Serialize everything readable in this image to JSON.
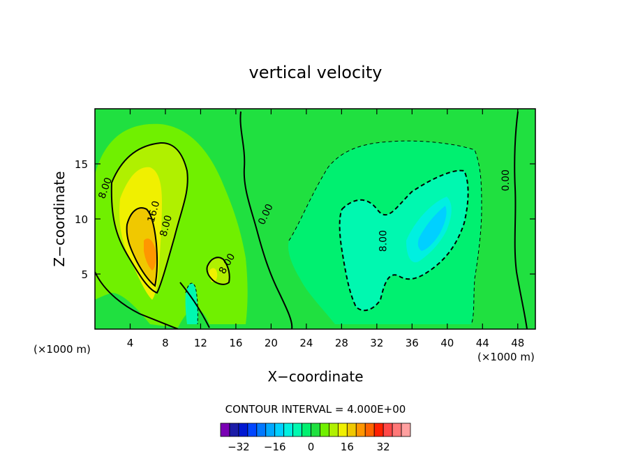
{
  "chart_data": {
    "type": "heatmap",
    "subtype": "filled-contour",
    "title": "vertical velocity",
    "xlabel": "X−coordinate",
    "ylabel": "Z−coordinate",
    "x_unit_left": "(×1000 m)",
    "x_unit_right": "(×1000 m)",
    "xlim": [
      0,
      50
    ],
    "ylim": [
      0,
      20
    ],
    "x_ticks": [
      "4",
      "8",
      "12",
      "16",
      "20",
      "24",
      "28",
      "32",
      "36",
      "40",
      "44",
      "48"
    ],
    "y_ticks": [
      "5",
      "10",
      "15"
    ],
    "contour_interval_text": "CONTOUR INTERVAL = 4.000E+00",
    "contour_interval": 4,
    "contour_labels": [
      {
        "text": "8.00",
        "x": 1.5,
        "y": 12.7
      },
      {
        "text": "16.0",
        "x": 7.0,
        "y": 10.6
      },
      {
        "text": "8.00",
        "x": 8.4,
        "y": 9.3
      },
      {
        "text": "8.00",
        "x": 15.3,
        "y": 5.8
      },
      {
        "text": "0.00",
        "x": 19.7,
        "y": 10.3
      },
      {
        "text": "8.00",
        "x": 33.1,
        "y": 8.0
      },
      {
        "text": "0.00",
        "x": 47.0,
        "y": 13.5
      }
    ],
    "features": [
      {
        "sign": "positive",
        "peak": 22,
        "x": 6.3,
        "y": 7.0
      },
      {
        "sign": "positive",
        "peak": 12,
        "x": 13.4,
        "y": 5.8
      },
      {
        "sign": "negative",
        "peak": -14,
        "x": 37.7,
        "y": 9.2
      },
      {
        "sign": "negative",
        "peak": -8,
        "x": 30.7,
        "y": 4.5
      },
      {
        "sign": "negative",
        "peak": -6,
        "x": 10.9,
        "y": 2.6
      }
    ],
    "colorbar": {
      "ticks": [
        "−32",
        "−16",
        "0",
        "16",
        "32"
      ],
      "levels": [
        -36,
        -32,
        -28,
        -24,
        -20,
        -16,
        -12,
        -8,
        -4,
        0,
        4,
        8,
        12,
        16,
        20,
        24,
        28,
        32,
        36
      ],
      "colors": [
        "#7a00b4",
        "#1c1ca8",
        "#0018d2",
        "#0046ff",
        "#0078ff",
        "#00a8ff",
        "#00d0ff",
        "#00f0e0",
        "#00f8b0",
        "#00f070",
        "#20e040",
        "#70f000",
        "#b0f000",
        "#f0f000",
        "#f0c800",
        "#ff9600",
        "#ff6400",
        "#ff2000",
        "#ff4848",
        "#ff7878",
        "#ffa0a0"
      ]
    }
  }
}
